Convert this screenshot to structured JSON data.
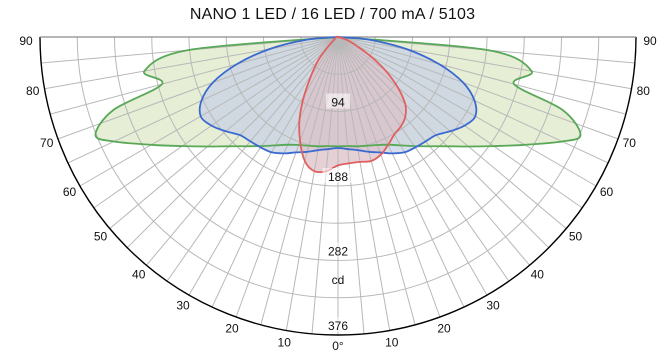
{
  "chart_data": {
    "type": "polar-intensity",
    "title": "NANO 1 LED / 16 LED / 700 mA / 5103",
    "unit": "cd",
    "radial_ticks": [
      "94",
      "188",
      "282",
      "376"
    ],
    "radial_values": [
      94,
      188,
      282,
      376
    ],
    "radial_max": 376,
    "angle_ticks_left": [
      "90",
      "80",
      "70",
      "60",
      "50",
      "40",
      "30",
      "20",
      "10"
    ],
    "angle_ticks_right": [
      "90",
      "80",
      "70",
      "60",
      "50",
      "40",
      "30",
      "20",
      "10"
    ],
    "angle_zero_label": "0°",
    "angle_tick_values": [
      90,
      80,
      70,
      60,
      50,
      40,
      30,
      20,
      10
    ],
    "series": [
      {
        "color": "#58a857",
        "fill": "#dfe8c8",
        "points": [
          [
            -90,
            0
          ],
          [
            -85,
            190
          ],
          [
            -80,
            248
          ],
          [
            -75,
            230
          ],
          [
            -72,
            298
          ],
          [
            -68,
            330
          ],
          [
            -65,
            312
          ],
          [
            -60,
            272
          ],
          [
            -55,
            240
          ],
          [
            -50,
            215
          ],
          [
            -45,
            195
          ],
          [
            -40,
            180
          ],
          [
            -35,
            168
          ],
          [
            -30,
            158
          ],
          [
            -25,
            150
          ],
          [
            -20,
            145
          ],
          [
            -15,
            142
          ],
          [
            -10,
            140
          ],
          [
            -5,
            138
          ],
          [
            0,
            138
          ],
          [
            5,
            138
          ],
          [
            10,
            140
          ],
          [
            15,
            142
          ],
          [
            20,
            145
          ],
          [
            25,
            150
          ],
          [
            30,
            158
          ],
          [
            35,
            168
          ],
          [
            40,
            180
          ],
          [
            45,
            195
          ],
          [
            50,
            215
          ],
          [
            55,
            240
          ],
          [
            60,
            272
          ],
          [
            65,
            312
          ],
          [
            68,
            330
          ],
          [
            72,
            298
          ],
          [
            75,
            230
          ],
          [
            80,
            248
          ],
          [
            85,
            190
          ],
          [
            90,
            0
          ]
        ]
      },
      {
        "color": "#3a6ad0",
        "fill": "#c8d2e4",
        "points": [
          [
            -90,
            0
          ],
          [
            -85,
            40
          ],
          [
            -80,
            88
          ],
          [
            -75,
            132
          ],
          [
            -70,
            168
          ],
          [
            -65,
            190
          ],
          [
            -60,
            200
          ],
          [
            -55,
            195
          ],
          [
            -50,
            185
          ],
          [
            -45,
            175
          ],
          [
            -40,
            172
          ],
          [
            -35,
            170
          ],
          [
            -30,
            168
          ],
          [
            -25,
            162
          ],
          [
            -20,
            155
          ],
          [
            -15,
            150
          ],
          [
            -10,
            145
          ],
          [
            -5,
            142
          ],
          [
            0,
            140
          ],
          [
            5,
            142
          ],
          [
            10,
            145
          ],
          [
            15,
            150
          ],
          [
            20,
            155
          ],
          [
            25,
            162
          ],
          [
            30,
            168
          ],
          [
            35,
            170
          ],
          [
            40,
            172
          ],
          [
            45,
            175
          ],
          [
            50,
            185
          ],
          [
            55,
            195
          ],
          [
            60,
            200
          ],
          [
            65,
            190
          ],
          [
            70,
            168
          ],
          [
            75,
            132
          ],
          [
            80,
            88
          ],
          [
            85,
            40
          ],
          [
            90,
            0
          ]
        ]
      },
      {
        "color": "#e06060",
        "fill": "#dcc0c8",
        "points": [
          [
            -90,
            0
          ],
          [
            -60,
            5
          ],
          [
            -40,
            40
          ],
          [
            -30,
            85
          ],
          [
            -25,
            115
          ],
          [
            -20,
            140
          ],
          [
            -15,
            162
          ],
          [
            -10,
            172
          ],
          [
            -5,
            170
          ],
          [
            0,
            162
          ],
          [
            5,
            160
          ],
          [
            10,
            160
          ],
          [
            15,
            162
          ],
          [
            20,
            158
          ],
          [
            25,
            150
          ],
          [
            30,
            142
          ],
          [
            35,
            138
          ],
          [
            40,
            132
          ],
          [
            45,
            120
          ],
          [
            50,
            98
          ],
          [
            55,
            72
          ],
          [
            60,
            45
          ],
          [
            70,
            15
          ],
          [
            90,
            0
          ]
        ]
      }
    ]
  }
}
